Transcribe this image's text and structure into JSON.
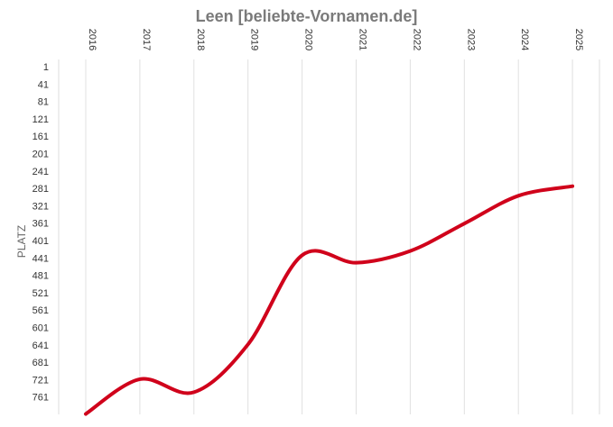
{
  "chart_data": {
    "type": "line",
    "title": "Leen [beliebte-Vornamen.de]",
    "xlabel": "",
    "ylabel": "PLATZ",
    "y_inverted": true,
    "ylim": [
      1,
      800
    ],
    "yticks": [
      1,
      41,
      81,
      121,
      161,
      201,
      241,
      281,
      321,
      361,
      401,
      441,
      481,
      521,
      561,
      601,
      641,
      681,
      721,
      761
    ],
    "x": [
      "2016",
      "2017",
      "2018",
      "2019",
      "2020",
      "2021",
      "2022",
      "2023",
      "2024",
      "2025"
    ],
    "grid": "vertical",
    "line_color": "#d0021b",
    "series": [
      {
        "values": [
          800,
          720,
          750,
          640,
          435,
          452,
          425,
          362,
          298,
          276
        ]
      }
    ]
  }
}
